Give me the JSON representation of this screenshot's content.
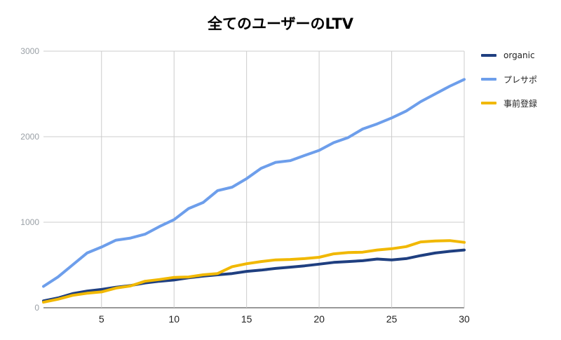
{
  "chart_data": {
    "type": "line",
    "title": "全てのユーザーのLTV",
    "xlabel": "",
    "ylabel": "",
    "xlim": [
      1,
      30
    ],
    "ylim": [
      0,
      3000
    ],
    "x_ticks": [
      5,
      10,
      15,
      20,
      25,
      30
    ],
    "y_ticks": [
      0,
      1000,
      2000,
      3000
    ],
    "grid": true,
    "legend": "right",
    "x": [
      1,
      2,
      3,
      4,
      5,
      6,
      7,
      8,
      9,
      10,
      11,
      12,
      13,
      14,
      15,
      16,
      17,
      18,
      19,
      20,
      21,
      22,
      23,
      24,
      25,
      26,
      27,
      28,
      29,
      30
    ],
    "series": [
      {
        "name": "organic",
        "color": "#1f3f80",
        "values": [
          80,
          115,
          165,
          195,
          215,
          240,
          260,
          290,
          310,
          325,
          350,
          370,
          385,
          400,
          425,
          440,
          460,
          475,
          490,
          510,
          530,
          540,
          550,
          570,
          560,
          575,
          610,
          640,
          660,
          675
        ]
      },
      {
        "name": "プレサポ",
        "color": "#6d9eeb",
        "values": [
          250,
          360,
          500,
          640,
          710,
          790,
          815,
          860,
          950,
          1030,
          1160,
          1230,
          1370,
          1410,
          1510,
          1630,
          1700,
          1720,
          1780,
          1840,
          1930,
          1990,
          2090,
          2150,
          2220,
          2300,
          2410,
          2500,
          2590,
          2670
        ]
      },
      {
        "name": "事前登録",
        "color": "#f1b800",
        "values": [
          65,
          100,
          145,
          170,
          185,
          230,
          255,
          310,
          330,
          355,
          360,
          385,
          400,
          480,
          515,
          540,
          560,
          565,
          575,
          590,
          630,
          645,
          650,
          675,
          690,
          715,
          770,
          780,
          785,
          765
        ]
      }
    ]
  }
}
